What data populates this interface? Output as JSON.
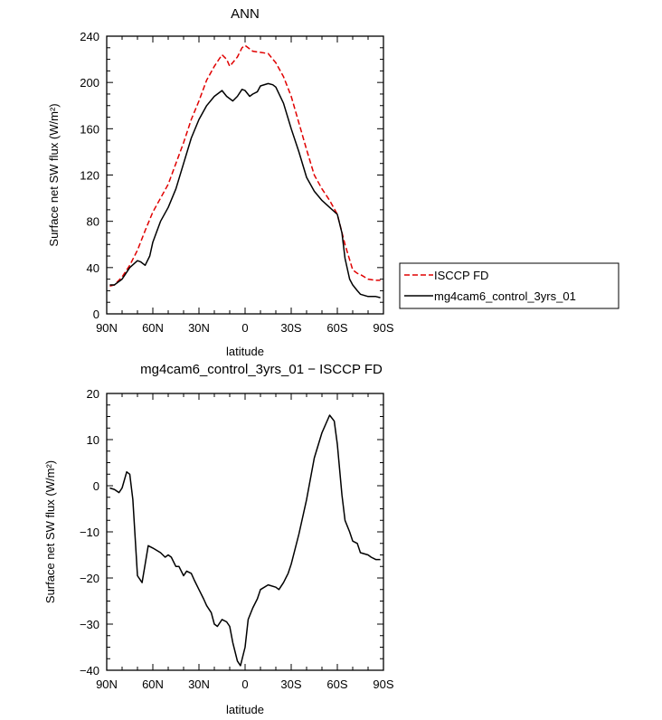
{
  "chart_data": [
    {
      "type": "line",
      "title": "ANN",
      "xlabel": "latitude",
      "ylabel": "Surface net SW flux (W/m²)",
      "xlim": [
        90,
        -90
      ],
      "ylim": [
        0,
        240
      ],
      "x_ticks": [
        90,
        60,
        30,
        0,
        -30,
        -60,
        -90
      ],
      "x_tick_labels": [
        "90N",
        "60N",
        "30N",
        "0",
        "30S",
        "60S",
        "90S"
      ],
      "y_ticks": [
        0,
        40,
        80,
        120,
        160,
        200,
        240
      ],
      "y_tick_labels": [
        "0",
        "40",
        "80",
        "120",
        "160",
        "200",
        "240"
      ],
      "legend_position": "right",
      "series": [
        {
          "name": "ISCCP FD",
          "color": "#e00000",
          "dashed": true,
          "x": [
            88,
            85,
            80,
            75,
            70,
            65,
            60,
            55,
            50,
            45,
            40,
            35,
            30,
            25,
            20,
            15,
            12,
            10,
            5,
            2,
            0,
            -5,
            -10,
            -15,
            -20,
            -25,
            -30,
            -35,
            -40,
            -45,
            -50,
            -55,
            -60,
            -65,
            -70,
            -73,
            -75,
            -80,
            -85,
            -88
          ],
          "y": [
            24,
            25,
            32,
            42,
            55,
            72,
            88,
            100,
            112,
            130,
            148,
            168,
            184,
            202,
            214,
            224,
            220,
            214,
            222,
            230,
            232,
            227,
            226,
            225,
            217,
            205,
            188,
            165,
            142,
            120,
            108,
            98,
            86,
            60,
            38,
            35,
            34,
            30,
            29,
            29
          ]
        },
        {
          "name": "mg4cam6_control_3yrs_01",
          "color": "#000000",
          "dashed": false,
          "x": [
            88,
            85,
            80,
            75,
            70,
            68,
            65,
            62,
            60,
            55,
            50,
            45,
            40,
            35,
            30,
            25,
            20,
            15,
            12,
            8,
            5,
            2,
            0,
            -3,
            -5,
            -8,
            -10,
            -15,
            -18,
            -20,
            -25,
            -30,
            -35,
            -40,
            -45,
            -50,
            -55,
            -60,
            -63,
            -65,
            -68,
            -70,
            -73,
            -75,
            -80,
            -85,
            -88
          ],
          "y": [
            25,
            25,
            30,
            40,
            46,
            45,
            42,
            50,
            62,
            80,
            92,
            108,
            130,
            152,
            168,
            180,
            188,
            193,
            188,
            184,
            188,
            194,
            193,
            188,
            190,
            192,
            197,
            199,
            198,
            196,
            182,
            160,
            140,
            118,
            106,
            98,
            92,
            86,
            70,
            48,
            30,
            25,
            20,
            17,
            15,
            15,
            14
          ]
        }
      ]
    },
    {
      "type": "line",
      "title": "mg4cam6_control_3yrs_01 − ISCCP FD",
      "xlabel": "latitude",
      "ylabel": "Surface net SW flux (W/m²)",
      "xlim": [
        90,
        -90
      ],
      "ylim": [
        -40,
        20
      ],
      "x_ticks": [
        90,
        60,
        30,
        0,
        -30,
        -60,
        -90
      ],
      "x_tick_labels": [
        "90N",
        "60N",
        "30N",
        "0",
        "30S",
        "60S",
        "90S"
      ],
      "y_ticks": [
        -40,
        -30,
        -20,
        -10,
        0,
        10,
        20
      ],
      "y_tick_labels": [
        "−40",
        "−30",
        "−20",
        "−10",
        "0",
        "10",
        "20"
      ],
      "series": [
        {
          "color": "#000000",
          "dashed": false,
          "x": [
            88,
            85,
            82,
            80,
            77,
            75,
            73,
            70,
            67,
            65,
            63,
            60,
            55,
            52,
            50,
            48,
            45,
            43,
            40,
            38,
            35,
            33,
            30,
            27,
            25,
            22,
            20,
            18,
            15,
            12,
            10,
            8,
            5,
            3,
            0,
            -2,
            -5,
            -8,
            -10,
            -15,
            -20,
            -22,
            -25,
            -28,
            -30,
            -35,
            -40,
            -45,
            -50,
            -55,
            -58,
            -60,
            -63,
            -65,
            -68,
            -70,
            -73,
            -75,
            -80,
            -82,
            -85,
            -88
          ],
          "y": [
            -0.5,
            -0.8,
            -1.5,
            -0.5,
            3,
            2.5,
            -3,
            -19.5,
            -21,
            -17,
            -13,
            -13.5,
            -14.5,
            -15.5,
            -15,
            -15.5,
            -17.5,
            -17.5,
            -19.5,
            -18.5,
            -19,
            -20.5,
            -22.5,
            -24.5,
            -26,
            -27.5,
            -30,
            -30.5,
            -29,
            -29.5,
            -30.5,
            -34,
            -38,
            -39,
            -35,
            -29,
            -26.5,
            -24.5,
            -22.5,
            -21.5,
            -22,
            -22.5,
            -21,
            -19,
            -17,
            -10.5,
            -3,
            6,
            11.5,
            15.3,
            14,
            9,
            -2,
            -7.5,
            -10,
            -12,
            -12.5,
            -14.5,
            -15,
            -15.5,
            -16,
            -16
          ]
        }
      ]
    }
  ]
}
